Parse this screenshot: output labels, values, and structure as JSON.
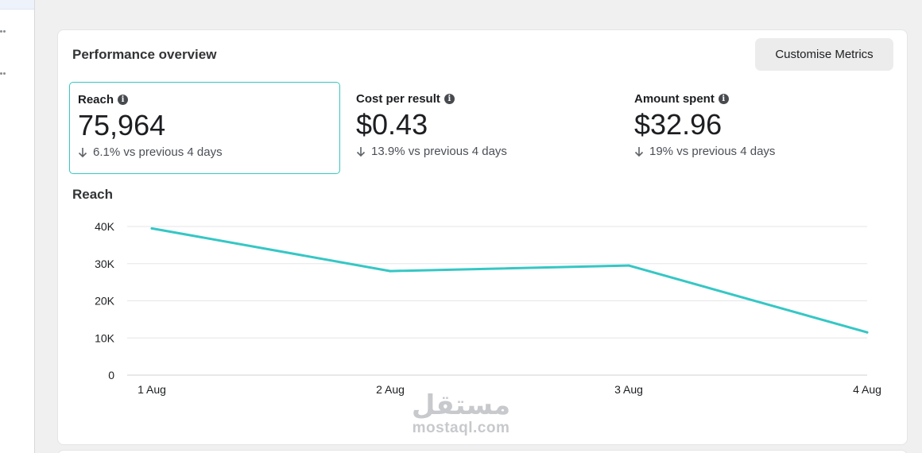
{
  "panel": {
    "title": "Performance overview",
    "customise_label": "Customise Metrics"
  },
  "metrics": [
    {
      "label": "Reach",
      "value": "75,964",
      "delta": "6.1% vs previous 4 days",
      "direction": "down",
      "selected": true
    },
    {
      "label": "Cost per result",
      "value": "$0.43",
      "delta": "13.9% vs previous 4 days",
      "direction": "down",
      "selected": false
    },
    {
      "label": "Amount spent",
      "value": "$32.96",
      "delta": "19% vs previous 4 days",
      "direction": "down",
      "selected": false
    }
  ],
  "chart_data": {
    "type": "line",
    "title": "Reach",
    "x": [
      "1 Aug",
      "2 Aug",
      "3 Aug",
      "4 Aug"
    ],
    "series": [
      {
        "values": [
          39500,
          28000,
          29500,
          11500
        ]
      }
    ],
    "yticks": [
      "0",
      "10K",
      "20K",
      "30K",
      "40K"
    ],
    "ytick_values": [
      0,
      10000,
      20000,
      30000,
      40000
    ],
    "ylim": [
      0,
      40000
    ],
    "grid": true,
    "line_color": "#35c7c5"
  },
  "watermark": {
    "arabic": "مستقل",
    "latin": "mostaql.com"
  },
  "colors": {
    "accent": "#35c7c5",
    "background": "#f0f0f0",
    "card": "#ffffff"
  }
}
